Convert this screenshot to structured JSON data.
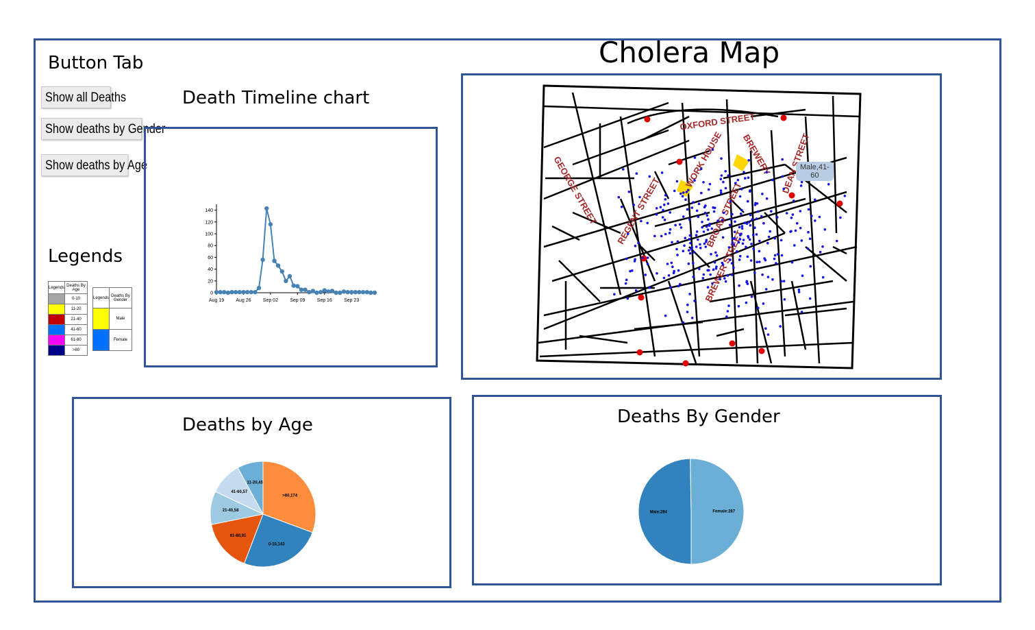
{
  "map_title": "Cholera Map",
  "button_tab": {
    "title": "Button Tab",
    "buttons": [
      "Show all Deaths",
      "Show deaths by Gender",
      "Show deaths by Age"
    ]
  },
  "timeline": {
    "title": "Death Timeline chart"
  },
  "legends": {
    "title": "Legends",
    "age_table": {
      "header": [
        "Legends",
        "Deaths By Age"
      ],
      "rows": [
        {
          "color": "#a6a6a6",
          "label": "0-10"
        },
        {
          "color": "#ffff00",
          "label": "11-20"
        },
        {
          "color": "#c00000",
          "label": "21-40"
        },
        {
          "color": "#0070ff",
          "label": "41-60"
        },
        {
          "color": "#ff00ff",
          "label": "61-80"
        },
        {
          "color": "#00008b",
          "label": ">80"
        }
      ]
    },
    "gender_table": {
      "header": [
        "Legends",
        "Deaths By Gender"
      ],
      "rows": [
        {
          "color": "#ffff00",
          "label": "Male"
        },
        {
          "color": "#0070ff",
          "label": "Female"
        }
      ]
    }
  },
  "map": {
    "streets": [
      "OXFORD STREET",
      "WORK HOUSE",
      "BREWERY",
      "DEAN STREET",
      "GEORGE STREET",
      "REGENT STREET",
      "BROAD STREET",
      "BREWER STREET"
    ],
    "tooltip": [
      "Male,41-",
      "60"
    ]
  },
  "age_pie": {
    "title": "Deaths by Age"
  },
  "gender_pie": {
    "title": "Deaths By Gender"
  },
  "chart_data": [
    {
      "type": "line",
      "x": [
        "Aug 19",
        "Aug 20",
        "Aug 21",
        "Aug 22",
        "Aug 23",
        "Aug 24",
        "Aug 25",
        "Aug 26",
        "Aug 27",
        "Aug 28",
        "Aug 29",
        "Aug 30",
        "Aug 31",
        "Sep 01",
        "Sep 02",
        "Sep 03",
        "Sep 04",
        "Sep 05",
        "Sep 06",
        "Sep 07",
        "Sep 08",
        "Sep 09",
        "Sep 10",
        "Sep 11",
        "Sep 12",
        "Sep 13",
        "Sep 14",
        "Sep 15",
        "Sep 16",
        "Sep 17",
        "Sep 18",
        "Sep 19",
        "Sep 20",
        "Sep 21",
        "Sep 22",
        "Sep 23",
        "Sep 24",
        "Sep 25",
        "Sep 26",
        "Sep 27",
        "Sep 28",
        "Sep 29"
      ],
      "values": [
        1,
        1,
        1,
        0,
        1,
        1,
        1,
        1,
        1,
        1,
        1,
        8,
        56,
        143,
        116,
        54,
        46,
        36,
        20,
        28,
        12,
        11,
        5,
        5,
        1,
        3,
        0,
        1,
        4,
        2,
        3,
        0,
        0,
        2,
        1,
        1,
        1,
        1,
        1,
        1,
        0,
        0
      ],
      "x_ticks": [
        "Aug 19",
        "Aug 26",
        "Sep 02",
        "Sep 09",
        "Sep 16",
        "Sep 23"
      ],
      "y_ticks": [
        0,
        20,
        40,
        60,
        80,
        100,
        120,
        140
      ],
      "ylim": [
        0,
        150
      ],
      "color": "#4682b4"
    },
    {
      "type": "pie",
      "labels": [
        "0-10,143",
        "61-80,91",
        "21-40,58",
        "41-60,57",
        "11-20,45",
        ">80,174"
      ],
      "values": [
        143,
        91,
        58,
        57,
        45,
        174
      ],
      "start_order": [
        "0-10,143",
        "61-80,91",
        "21-40,58",
        "41-60,57",
        "11-20,45",
        ">80,174"
      ],
      "colors": [
        "#3182bd",
        "#e6550d",
        "#9ecae1",
        "#c6dbef",
        "#6baed6",
        "#fd8d3c"
      ]
    },
    {
      "type": "pie",
      "labels": [
        "Male:284",
        "Female:287"
      ],
      "values": [
        284,
        287
      ],
      "colors": [
        "#3182bd",
        "#6baed6"
      ]
    }
  ]
}
